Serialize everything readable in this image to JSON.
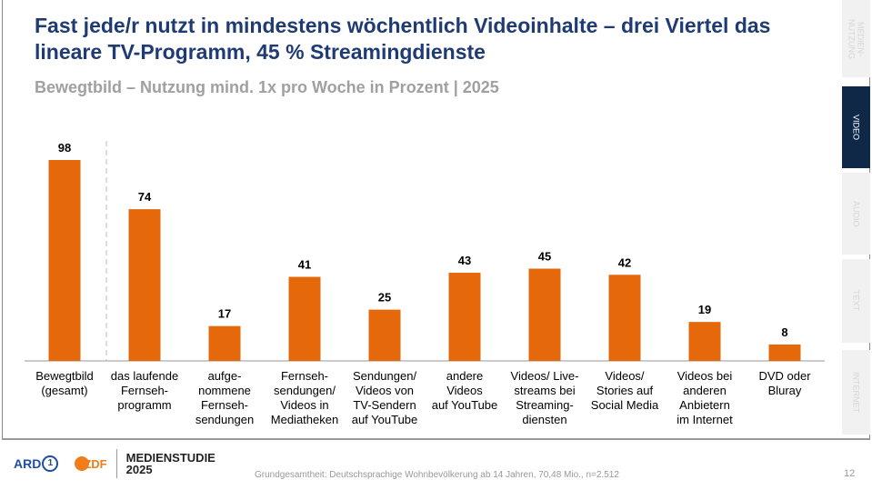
{
  "title": "Fast jede/r nutzt in mindestens wöchentlich Videoinhalte – drei Viertel das lineare TV-Programm, 45 % Streamingdienste",
  "subtitle": "Bewegtbild – Nutzung mind. 1x pro Woche in Prozent | 2025",
  "tabs": [
    {
      "label": "MEDIEN-\nNUTZUNG"
    },
    {
      "label": "VIDEO"
    },
    {
      "label": "AUDIO"
    },
    {
      "label": "TEXT"
    },
    {
      "label": "INTERNET"
    }
  ],
  "footer": {
    "note": "Grundgesamtheit: Deutschsprachige Wohnbevölkerung ab 14 Jahren, 70,48 Mio., n=2.512",
    "page": "12",
    "brand1": "ARD",
    "brand2": "ZDF",
    "study": "MEDIENSTUDIE",
    "year": "2025"
  },
  "colors": {
    "bar": "#e5690a",
    "title": "#1f3b73",
    "active_tab": "#102848"
  },
  "chart_data": {
    "type": "bar",
    "title": "",
    "xlabel": "",
    "ylabel": "",
    "ylim": [
      0,
      100
    ],
    "categories": [
      "Bewegtbild\n(gesamt)",
      "das laufende\nFernseh-\nprogramm",
      "aufge-\nnommene\nFernseh-\nsendungen",
      "Fernseh-\nsendungen/\nVideos in\nMediatheken",
      "Sendungen/\nVideos von\nTV-Sendern\nauf YouTube",
      "andere\nVideos\nauf YouTube",
      "Videos/ Live-\nstreams bei\nStreaming-\ndiensten",
      "Videos/\nStories auf\nSocial Media",
      "Videos bei\nanderen\nAnbietern\nim Internet",
      "DVD oder\nBluray"
    ],
    "values": [
      98,
      74,
      17,
      41,
      25,
      43,
      45,
      42,
      19,
      8
    ]
  }
}
